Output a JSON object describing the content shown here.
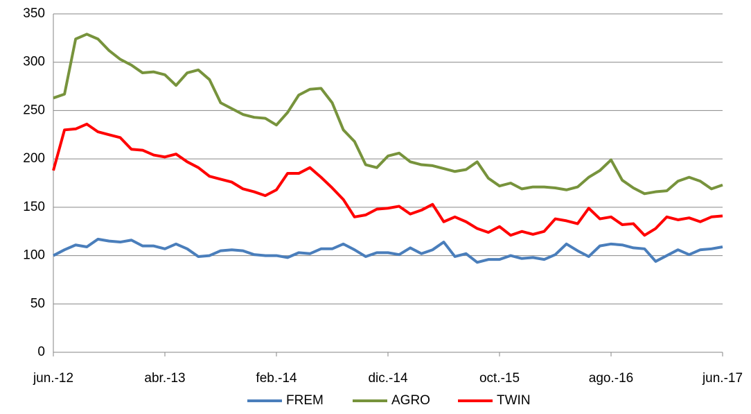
{
  "chart_data": {
    "type": "line",
    "categories": [
      "jun.-12",
      null,
      null,
      null,
      null,
      null,
      null,
      null,
      null,
      null,
      "abr.-13",
      null,
      null,
      null,
      null,
      null,
      null,
      null,
      null,
      null,
      "feb.-14",
      null,
      null,
      null,
      null,
      null,
      null,
      null,
      null,
      null,
      "dic.-14",
      null,
      null,
      null,
      null,
      null,
      null,
      null,
      null,
      null,
      "oct.-15",
      null,
      null,
      null,
      null,
      null,
      null,
      null,
      null,
      null,
      "ago.-16",
      null,
      null,
      null,
      null,
      null,
      null,
      null,
      null,
      null,
      "jun.-17"
    ],
    "series": [
      {
        "name": "FREM",
        "color": "#4a7ebb",
        "values": [
          100,
          106,
          111,
          109,
          117,
          115,
          114,
          116,
          110,
          110,
          107,
          112,
          107,
          99,
          100,
          105,
          106,
          105,
          101,
          100,
          100,
          98,
          103,
          102,
          107,
          107,
          112,
          106,
          99,
          103,
          103,
          101,
          108,
          102,
          106,
          114,
          99,
          102,
          93,
          96,
          96,
          100,
          97,
          98,
          96,
          101,
          112,
          105,
          99,
          110,
          112,
          111,
          108,
          107,
          94,
          100,
          106,
          101,
          106,
          107,
          109
        ]
      },
      {
        "name": "AGRO",
        "color": "#77933c",
        "values": [
          263,
          267,
          324,
          329,
          324,
          312,
          303,
          297,
          289,
          290,
          287,
          276,
          289,
          292,
          282,
          258,
          252,
          246,
          243,
          242,
          235,
          248,
          266,
          272,
          273,
          258,
          230,
          218,
          194,
          191,
          203,
          206,
          197,
          194,
          193,
          190,
          187,
          189,
          197,
          180,
          172,
          175,
          169,
          171,
          171,
          170,
          168,
          171,
          181,
          188,
          199,
          178,
          170,
          164,
          166,
          167,
          177,
          181,
          177,
          169,
          173
        ]
      },
      {
        "name": "TWIN",
        "color": "#ff0000",
        "values": [
          188,
          230,
          231,
          236,
          228,
          225,
          222,
          210,
          209,
          204,
          202,
          205,
          197,
          191,
          182,
          179,
          176,
          169,
          166,
          162,
          168,
          185,
          185,
          191,
          181,
          170,
          158,
          140,
          142,
          148,
          149,
          151,
          143,
          147,
          153,
          135,
          140,
          135,
          128,
          124,
          130,
          121,
          125,
          122,
          125,
          138,
          136,
          133,
          149,
          138,
          140,
          132,
          133,
          121,
          128,
          140,
          137,
          139,
          135,
          140,
          141
        ]
      }
    ],
    "ylim": [
      0,
      350
    ],
    "yticks": [
      0,
      50,
      100,
      150,
      200,
      250,
      300,
      350
    ],
    "grid": true,
    "legend": "bottom"
  }
}
